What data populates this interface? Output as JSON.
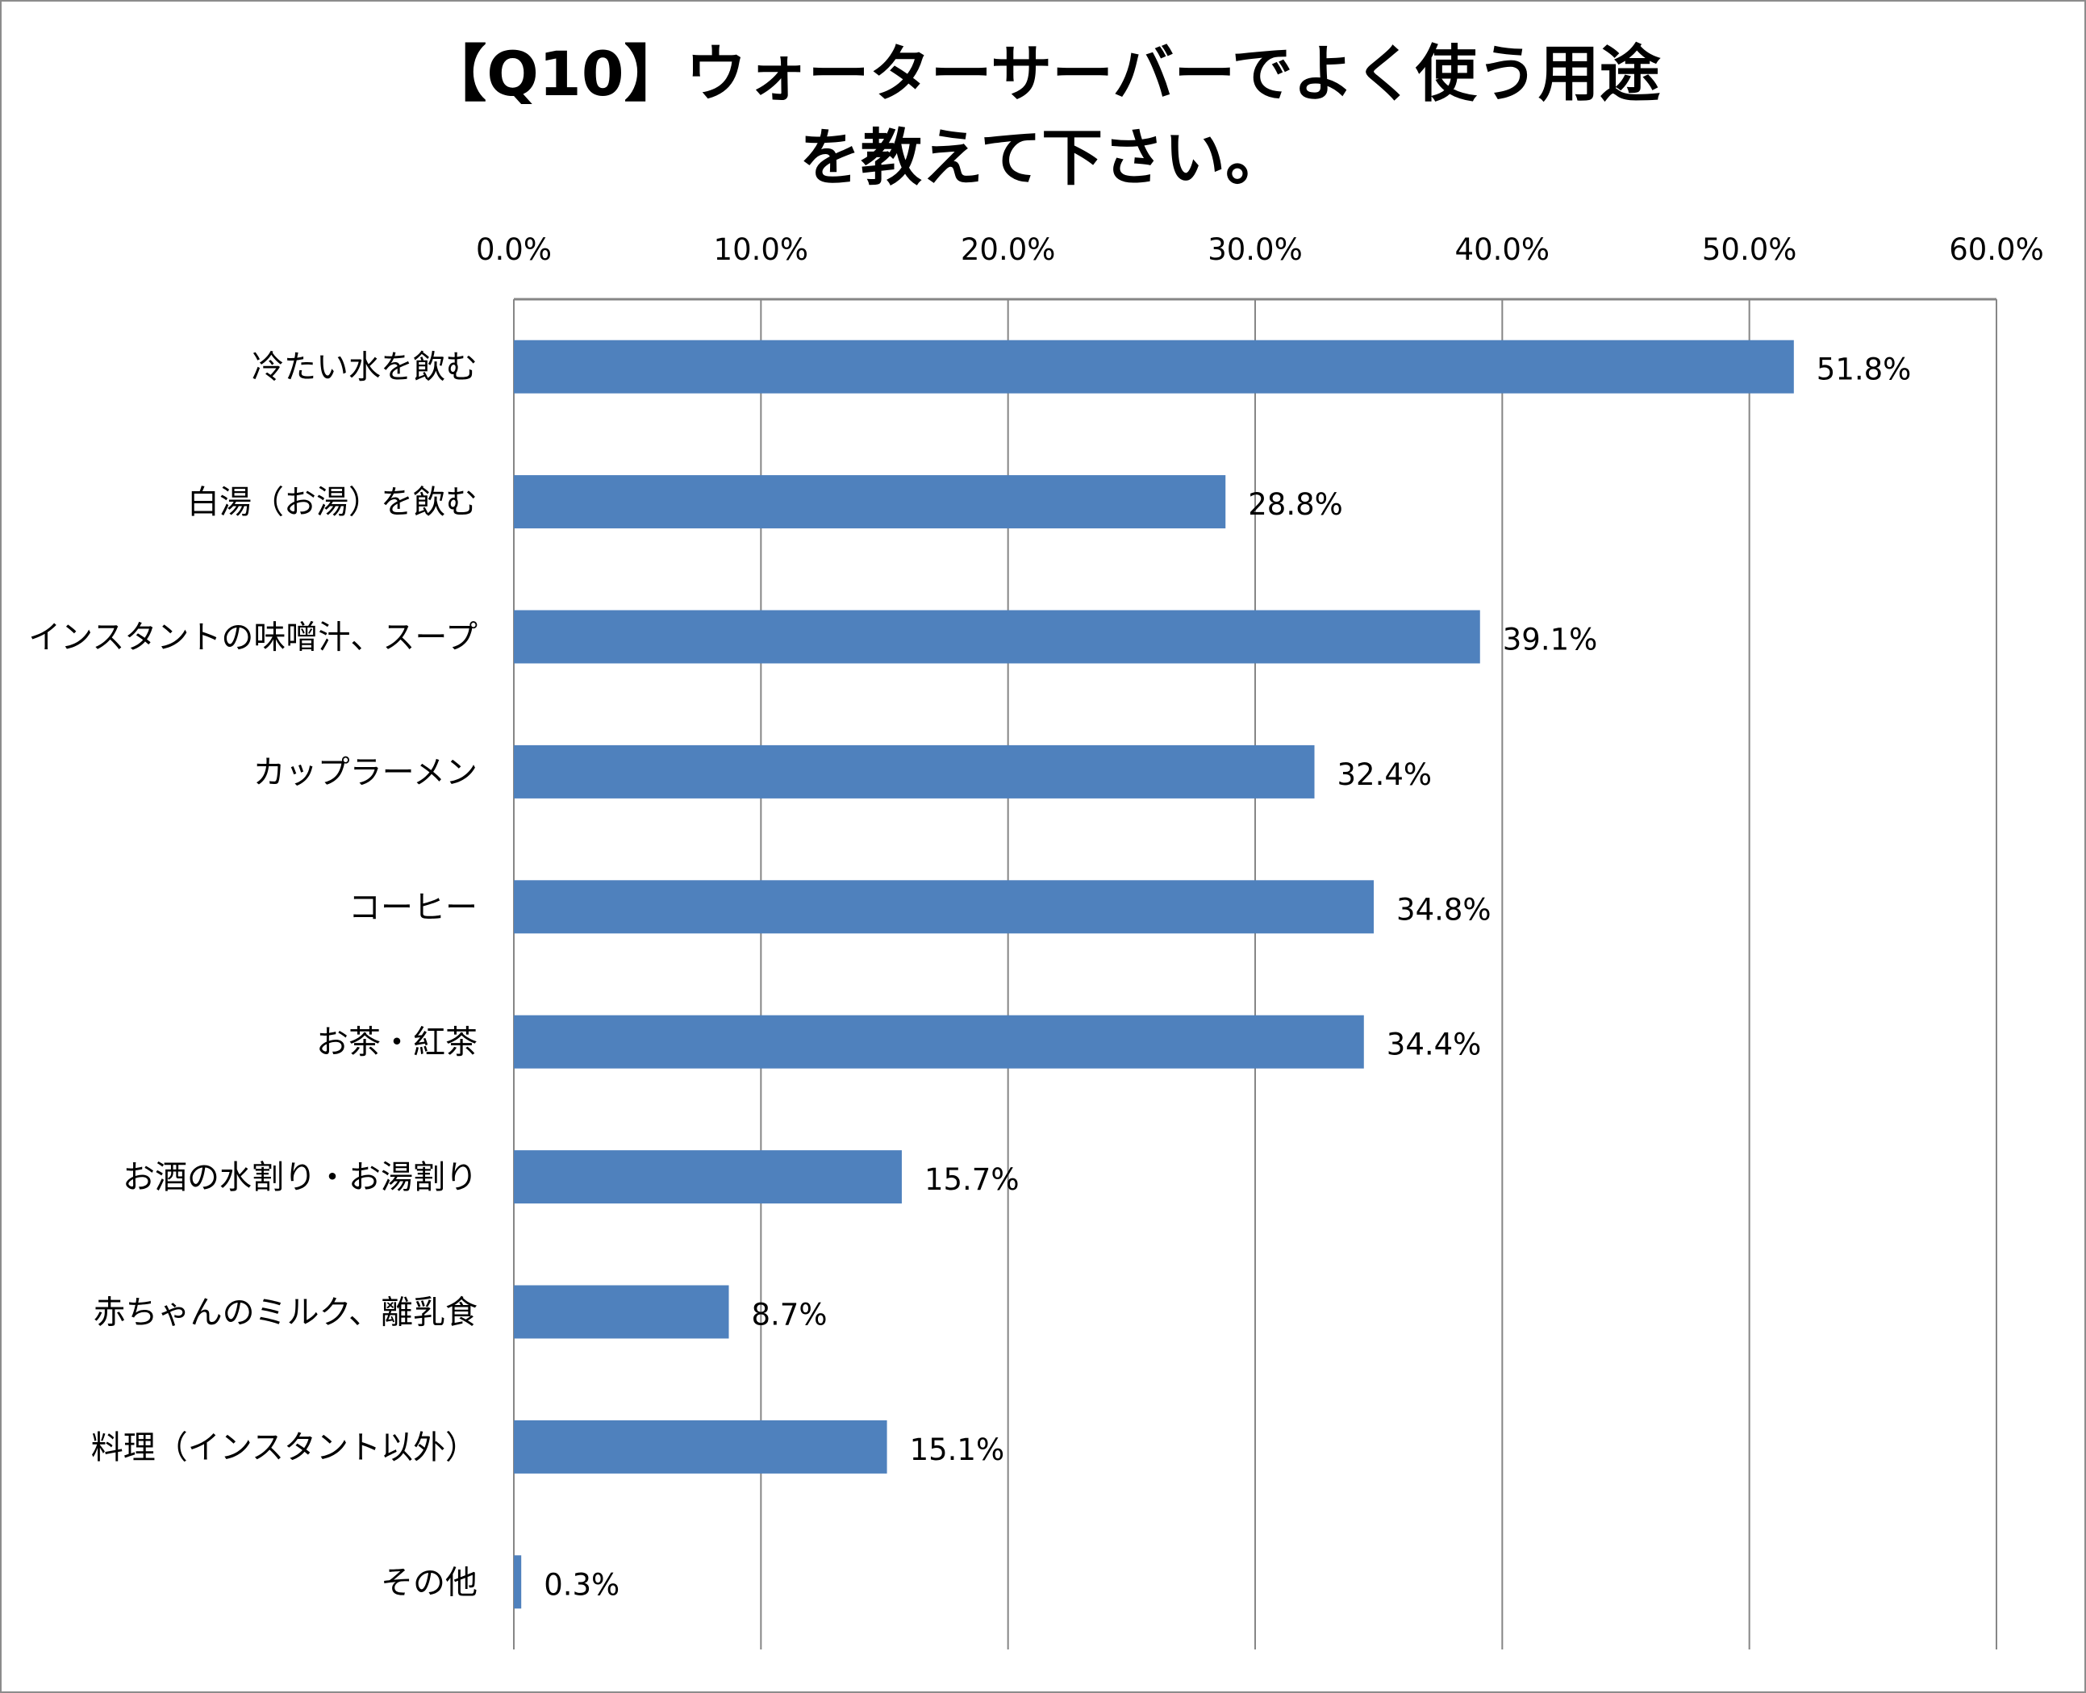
{
  "chart_data": {
    "type": "bar",
    "orientation": "horizontal",
    "title_lines": [
      "【Q10】ウォーターサーバーでよく使う用途",
      "を教えて下さい。"
    ],
    "categories": [
      "冷たい水を飲む",
      "白湯（お湯）を飲む",
      "インスタントの味噌汁、スープ",
      "カップラーメン",
      "コーヒー",
      "お茶・紅茶",
      "お酒の水割り・お湯割り",
      "赤ちゃんのミルク、離乳食",
      "料理（インスタント以外）",
      "その他"
    ],
    "values": [
      51.8,
      28.8,
      39.1,
      32.4,
      34.8,
      34.4,
      15.7,
      8.7,
      15.1,
      0.3
    ],
    "data_labels": [
      "51.8%",
      "28.8%",
      "39.1%",
      "32.4%",
      "34.8%",
      "34.4%",
      "15.7%",
      "8.7%",
      "15.1%",
      "0.3%"
    ],
    "xlim": [
      0,
      60
    ],
    "x_ticks": [
      0,
      10,
      20,
      30,
      40,
      50,
      60
    ],
    "x_tick_labels": [
      "0.0%",
      "10.0%",
      "20.0%",
      "30.0%",
      "40.0%",
      "50.0%",
      "60.0%"
    ],
    "x_axis_position": "top",
    "grid": true,
    "legend": "none",
    "bar_color": "#4f81bd",
    "grid_color": "#868686"
  }
}
